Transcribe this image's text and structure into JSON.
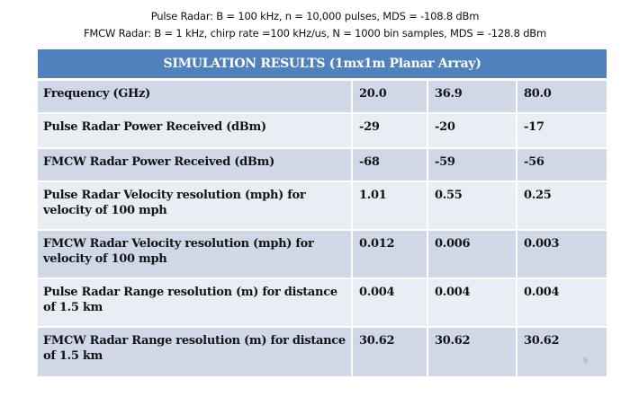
{
  "header": {
    "line1": "Pulse Radar: B = 100 kHz, n = 10,000 pulses, MDS = -108.8 dBm",
    "line2": "FMCW Radar: B = 1 kHz, chirp rate =100 kHz/us, N = 1000 bin samples, MDS = -128.8 dBm"
  },
  "table": {
    "title": "SIMULATION RESULTS (1mx1m Planar Array)",
    "rows": [
      {
        "label": "Frequency (GHz)",
        "values": [
          "20.0",
          "36.9",
          "80.0"
        ]
      },
      {
        "label": "Pulse Radar Power Received (dBm)",
        "values": [
          "-29",
          "-20",
          "-17"
        ]
      },
      {
        "label": "FMCW Radar Power Received (dBm)",
        "values": [
          "-68",
          "-59",
          "-56"
        ]
      },
      {
        "label": "Pulse Radar Velocity resolution (mph) for velocity of 100 mph",
        "values": [
          "1.01",
          "0.55",
          "0.25"
        ]
      },
      {
        "label": "FMCW Radar Velocity resolution (mph) for velocity of 100 mph",
        "values": [
          "0.012",
          "0.006",
          "0.003"
        ]
      },
      {
        "label": "Pulse Radar Range resolution (m) for distance of 1.5 km",
        "values": [
          "0.004",
          "0.004",
          "0.004"
        ]
      },
      {
        "label": "FMCW Radar Range resolution (m) for distance of 1.5 km",
        "values": [
          "30.62",
          "30.62",
          "30.62"
        ]
      }
    ]
  },
  "slide": {
    "page_number": "9"
  },
  "colors": {
    "header_fill": "#4f81bd",
    "row_odd": "#d0d8e8",
    "row_even": "#e9edf4"
  }
}
